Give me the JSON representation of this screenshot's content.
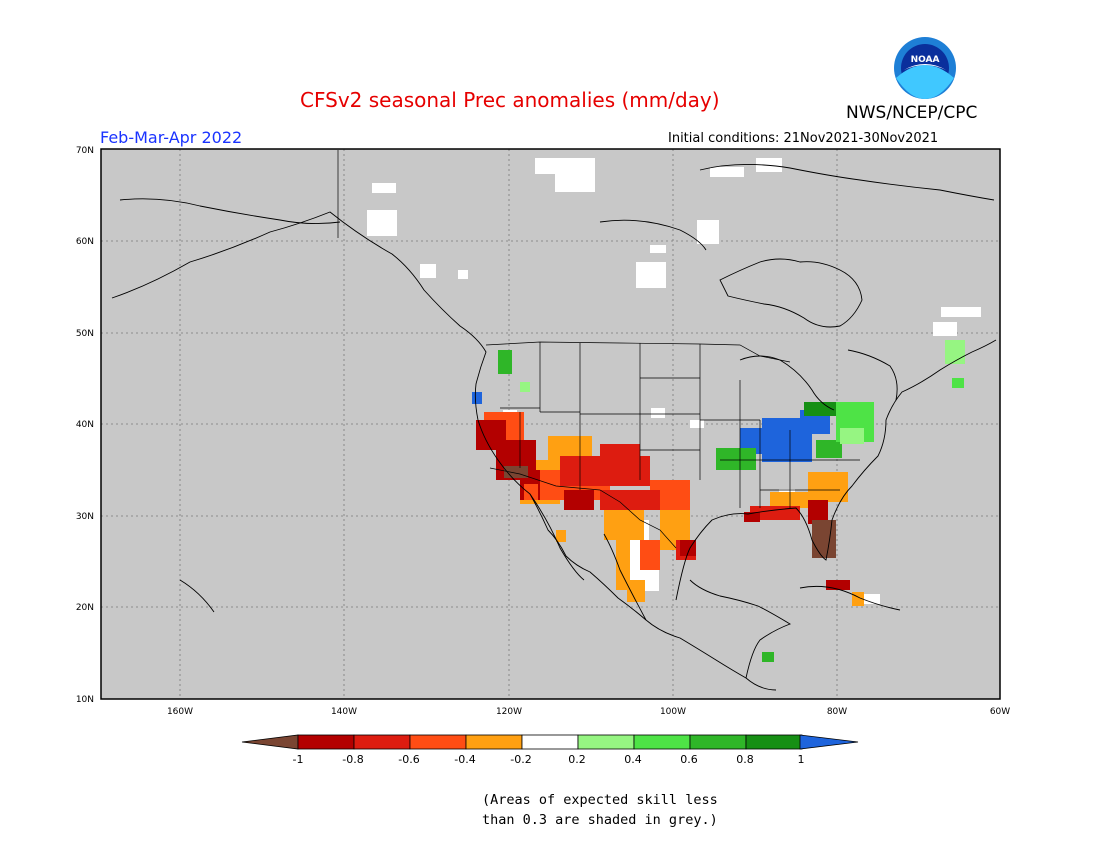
{
  "header": {
    "title": "CFSv2 seasonal Prec anomalies (mm/day)",
    "agency": "NWS/NCEP/CPC",
    "season": "Feb-Mar-Apr 2022",
    "initial_conditions": "Initial conditions: 21Nov2021-30Nov2021"
  },
  "logo": {
    "icon": "noaa-logo-icon",
    "text": "NOAA"
  },
  "map": {
    "background_color": "#c8c8c8",
    "lat_ticks": [
      "70N",
      "60N",
      "50N",
      "40N",
      "30N",
      "20N",
      "10N"
    ],
    "lon_ticks": [
      "160W",
      "140W",
      "120W",
      "100W",
      "80W",
      "60W"
    ]
  },
  "colorbar": {
    "labels": [
      "-1",
      "-0.8",
      "-0.6",
      "-0.4",
      "-0.2",
      "0.2",
      "0.4",
      "0.6",
      "0.8",
      "1"
    ],
    "colors": [
      "#7a4532",
      "#b30000",
      "#dd1c10",
      "#ff4d14",
      "#ffa012",
      "#ffffff",
      "#96f582",
      "#4ee346",
      "#2fb628",
      "#168f14",
      "#1e64dc"
    ]
  },
  "footnote": {
    "line1": "(Areas of expected skill less",
    "line2": "than 0.3 are shaded in grey.)"
  }
}
